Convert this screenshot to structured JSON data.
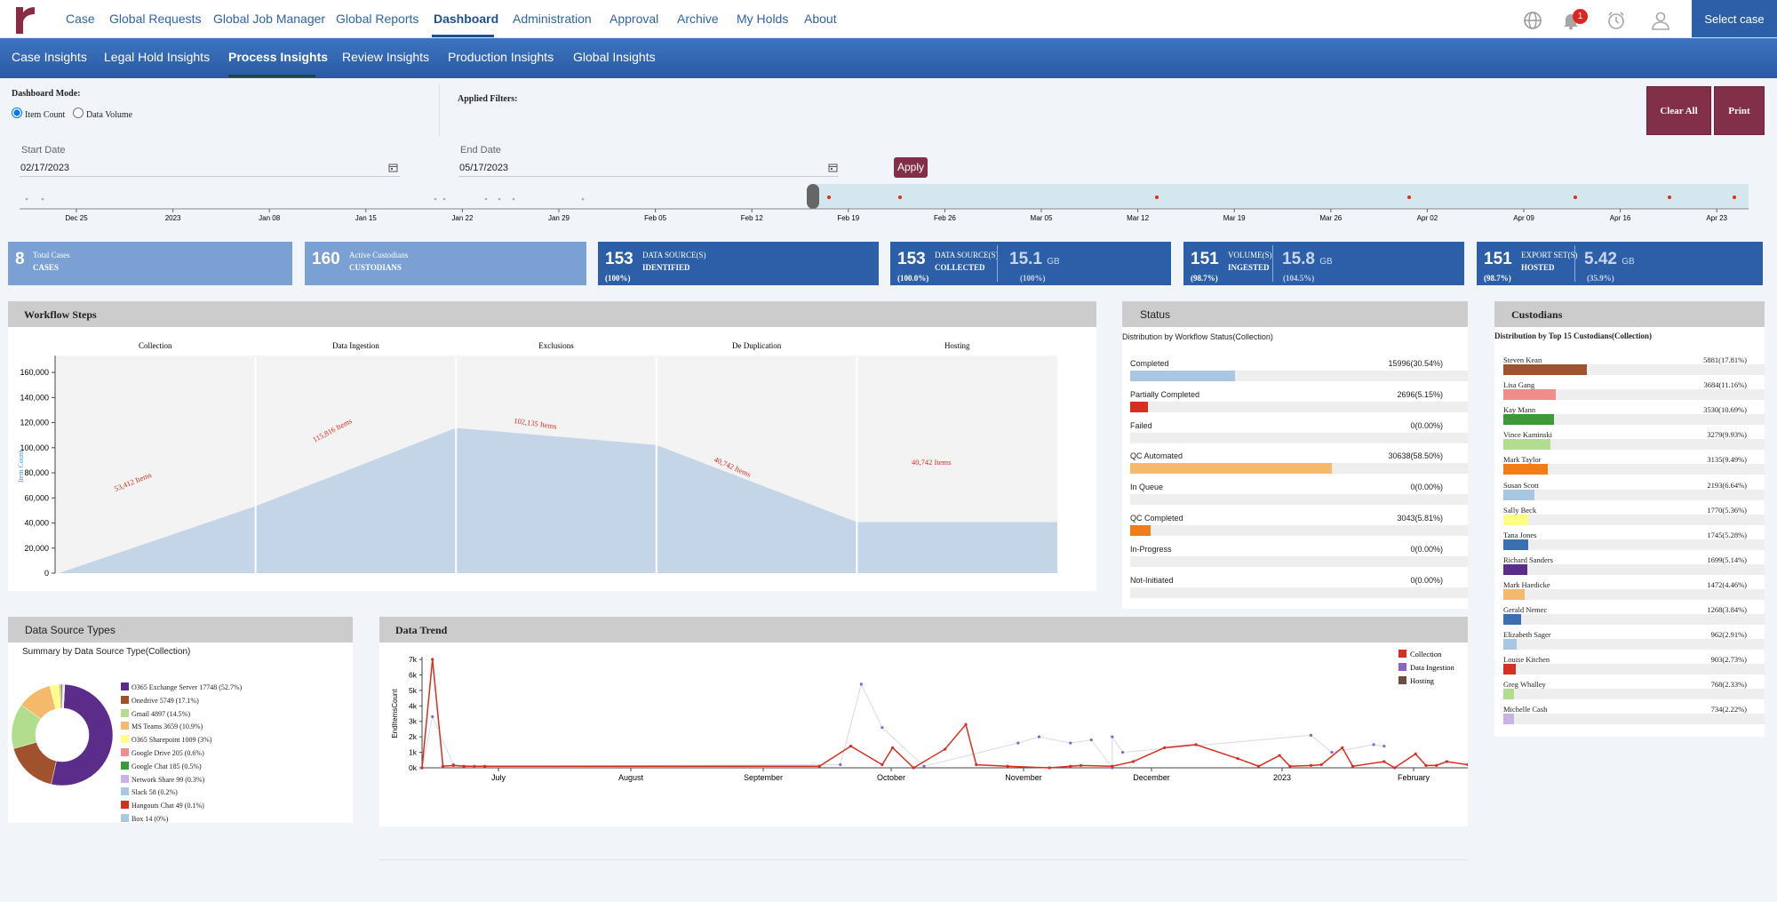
{
  "nav": {
    "items": [
      "Case",
      "Global Requests",
      "Global Job Manager",
      "Global Reports",
      "Dashboard",
      "Administration",
      "Approval",
      "Archive",
      "My Holds",
      "About"
    ],
    "active": "Dashboard",
    "notifications": "1",
    "select_case": "Select case"
  },
  "subnav": {
    "items": [
      "Case Insights",
      "Legal Hold Insights",
      "Process Insights",
      "Review Insights",
      "Production Insights",
      "Global Insights"
    ],
    "active": "Process Insights"
  },
  "filters": {
    "mode_label": "Dashboard Mode:",
    "mode_item": "Item Count",
    "mode_volume": "Data Volume",
    "applied_label": "Applied Filters:",
    "clear_all": "Clear All",
    "print": "Print",
    "start_label": "Start Date",
    "start_value": "02/17/2023",
    "end_label": "End Date",
    "end_value": "05/17/2023",
    "apply": "Apply"
  },
  "timeline": {
    "ticks": [
      "Dec 25",
      "2023",
      "Jan 08",
      "Jan 15",
      "Jan 22",
      "Jan 29",
      "Feb 05",
      "Feb 12",
      "Feb 19",
      "Feb 26",
      "Mar 05",
      "Mar 12",
      "Mar 19",
      "Mar 26",
      "Apr 02",
      "Apr 09",
      "Apr 16",
      "Apr 23"
    ]
  },
  "kpis": [
    {
      "value": "8",
      "line1": "Total Cases",
      "line2": "CASES"
    },
    {
      "value": "160",
      "line1": "Active Custodians",
      "line2": "CUSTODIANS"
    },
    {
      "value": "153",
      "line1": "DATA SOURCE(S)",
      "line2": "IDENTIFIED",
      "pct": "(100%)"
    },
    {
      "value": "153",
      "line1": "DATA SOURCE(S)",
      "line2": "COLLECTED",
      "pct": "(100.0%)",
      "value2": "15.1",
      "unit2": "GB",
      "pct2": "(100%)"
    },
    {
      "value": "151",
      "line1": "VOLUME(S)",
      "line2": "INGESTED",
      "pct": "(98.7%)",
      "value2": "15.8",
      "unit2": "GB",
      "pct2": "(104.5%)"
    },
    {
      "value": "151",
      "line1": "EXPORT SET(S)",
      "line2": "HOSTED",
      "pct": "(98.7%)",
      "value2": "5.42",
      "unit2": "GB",
      "pct2": "(35.9%)"
    }
  ],
  "workflow": {
    "title": "Workflow Steps",
    "ylabel": "Item Count",
    "yticks": [
      "160,000",
      "140,000",
      "120,000",
      "100,000",
      "80,000",
      "60,000",
      "40,000",
      "20,000",
      "0"
    ],
    "chart_data": {
      "type": "area",
      "categories": [
        "Collection",
        "Data Ingestion",
        "Exclusions",
        "De Duplication",
        "Hosting"
      ],
      "values": [
        53412,
        115816,
        102135,
        40742,
        40742
      ],
      "labels": [
        "53,412 Items",
        "115,816 Items",
        "102,135 Items",
        "40,742 Items",
        "40,742 Items"
      ],
      "ylim": [
        0,
        170000
      ]
    }
  },
  "status": {
    "title": "Status",
    "subtitle": "Distribution by Workflow Status(Collection)",
    "items": [
      {
        "label": "Completed",
        "value": "15996(30.54%)",
        "pct": 30.54,
        "color": "#a9c6e3"
      },
      {
        "label": "Partially Completed",
        "value": "2696(5.15%)",
        "pct": 5.15,
        "color": "#d62e1f"
      },
      {
        "label": "Failed",
        "value": "0(0.00%)",
        "pct": 0,
        "color": "#999999"
      },
      {
        "label": "QC Automated",
        "value": "30638(58.50%)",
        "pct": 58.5,
        "color": "#f4b96b"
      },
      {
        "label": "In Queue",
        "value": "0(0.00%)",
        "pct": 0,
        "color": "#999999"
      },
      {
        "label": "QC Completed",
        "value": "3043(5.81%)",
        "pct": 5.81,
        "color": "#f07d18"
      },
      {
        "label": "In-Progress",
        "value": "0(0.00%)",
        "pct": 0,
        "color": "#999999"
      },
      {
        "label": "Not-Initiated",
        "value": "0(0.00%)",
        "pct": 0,
        "color": "#999999"
      }
    ]
  },
  "custodians": {
    "title": "Custodians",
    "subtitle": "Distribution by Top 15 Custodians(Collection)",
    "items": [
      {
        "name": "Steven Kean",
        "value": "5881(17.81%)",
        "pct": 17.81,
        "color": "#a0522d"
      },
      {
        "name": "Lisa Gang",
        "value": "3684(11.16%)",
        "pct": 11.16,
        "color": "#f08c8c"
      },
      {
        "name": "Kay Mann",
        "value": "3530(10.69%)",
        "pct": 10.69,
        "color": "#3a9a35"
      },
      {
        "name": "Vince Kaminski",
        "value": "3279(9.93%)",
        "pct": 9.93,
        "color": "#b2dc8e"
      },
      {
        "name": "Mark Taylor",
        "value": "3135(9.49%)",
        "pct": 9.49,
        "color": "#f07d18"
      },
      {
        "name": "Susan Scott",
        "value": "2193(6.64%)",
        "pct": 6.64,
        "color": "#a9c6e3"
      },
      {
        "name": "Sally Beck",
        "value": "1770(5.36%)",
        "pct": 5.36,
        "color": "#ffff88"
      },
      {
        "name": "Tana Jones",
        "value": "1745(5.28%)",
        "pct": 5.28,
        "color": "#3a6fb0"
      },
      {
        "name": "Richard Sanders",
        "value": "1699(5.14%)",
        "pct": 5.14,
        "color": "#5b2c8a"
      },
      {
        "name": "Mark Haedicke",
        "value": "1472(4.46%)",
        "pct": 4.46,
        "color": "#f4b96b"
      },
      {
        "name": "Gerald Nemec",
        "value": "1268(3.84%)",
        "pct": 3.84,
        "color": "#3a6fb0"
      },
      {
        "name": "Elizabeth Sager",
        "value": "962(2.91%)",
        "pct": 2.91,
        "color": "#a9c6e3"
      },
      {
        "name": "Louise Kitchen",
        "value": "903(2.73%)",
        "pct": 2.73,
        "color": "#d62e1f"
      },
      {
        "name": "Greg Whalley",
        "value": "768(2.33%)",
        "pct": 2.33,
        "color": "#b2dc8e"
      },
      {
        "name": "Michelle Cash",
        "value": "734(2.22%)",
        "pct": 2.22,
        "color": "#c9b3e0"
      }
    ]
  },
  "datasource": {
    "title": "Data Source Types",
    "subtitle": "Summary by Data Source Type(Collection)",
    "chart_data": {
      "type": "pie",
      "slices": [
        {
          "label": "O365 Exchange Server 17748 (52.7%)",
          "value": 52.7,
          "color": "#5b2c8a"
        },
        {
          "label": "Onedrive 5749 (17.1%)",
          "value": 17.1,
          "color": "#a0522d"
        },
        {
          "label": "Gmail 4897 (14.5%)",
          "value": 14.5,
          "color": "#b2dc8e"
        },
        {
          "label": "MS Teams 3659 (10.9%)",
          "value": 10.9,
          "color": "#f4b96b"
        },
        {
          "label": "O365 Sharepoint 1009 (3%)",
          "value": 3,
          "color": "#ffff88"
        },
        {
          "label": "Google Drive 205 (0.6%)",
          "value": 0.6,
          "color": "#f08c8c"
        },
        {
          "label": "Google Chat 185 (0.5%)",
          "value": 0.5,
          "color": "#3a9a35"
        },
        {
          "label": "Network Share 99 (0.3%)",
          "value": 0.3,
          "color": "#c9b3e0"
        },
        {
          "label": "Slack 58 (0.2%)",
          "value": 0.2,
          "color": "#a9c6e3"
        },
        {
          "label": "Hangouts Chat 49 (0.1%)",
          "value": 0.1,
          "color": "#d62e1f"
        },
        {
          "label": "Box 14 (0%)",
          "value": 0.05,
          "color": "#a9c6e3"
        }
      ]
    }
  },
  "trend": {
    "title": "Data Trend",
    "ylabel": "EndItemsCount",
    "yticks": [
      "7k",
      "6k",
      "5k",
      "4k",
      "3k",
      "2k",
      "1k",
      "0k"
    ],
    "xticks": [
      "July",
      "August",
      "September",
      "October",
      "November",
      "December",
      "2023",
      "February"
    ],
    "legend": [
      {
        "name": "Collection",
        "color": "#d62e1f"
      },
      {
        "name": "Data Ingestion",
        "color": "#8a63c9"
      },
      {
        "name": "Hosting",
        "color": "#6d4c41"
      }
    ],
    "chart_data": {
      "type": "line",
      "ylim": [
        0,
        7000
      ],
      "series": [
        {
          "name": "Collection",
          "values": [
            0,
            7000,
            100,
            150,
            100,
            100,
            100,
            1400,
            200,
            1300,
            0,
            1200,
            2800,
            200,
            100,
            0,
            100,
            150,
            100,
            400,
            1300,
            1500,
            600,
            100,
            800,
            100,
            150,
            200,
            1300,
            100,
            400,
            0,
            900,
            150,
            150,
            400,
            200
          ],
          "x": [
            0.0,
            0.01,
            0.02,
            0.03,
            0.04,
            0.06,
            0.38,
            0.41,
            0.44,
            0.45,
            0.47,
            0.5,
            0.52,
            0.53,
            0.56,
            0.6,
            0.62,
            0.63,
            0.66,
            0.68,
            0.71,
            0.74,
            0.78,
            0.8,
            0.82,
            0.83,
            0.85,
            0.86,
            0.88,
            0.89,
            0.92,
            0.93,
            0.95,
            0.96,
            0.97,
            0.98,
            1.0
          ]
        },
        {
          "name": "Data Ingestion",
          "values": [
            0,
            3300,
            200,
            100,
            200,
            5400,
            2600,
            100,
            1600,
            2000,
            1600,
            1800,
            0,
            2000,
            1000,
            2100,
            1000,
            1500,
            1400
          ],
          "x": [
            0.0,
            0.01,
            0.03,
            0.05,
            0.4,
            0.42,
            0.44,
            0.48,
            0.57,
            0.59,
            0.62,
            0.64,
            0.66,
            0.66,
            0.67,
            0.85,
            0.87,
            0.91,
            0.92
          ]
        }
      ]
    }
  }
}
